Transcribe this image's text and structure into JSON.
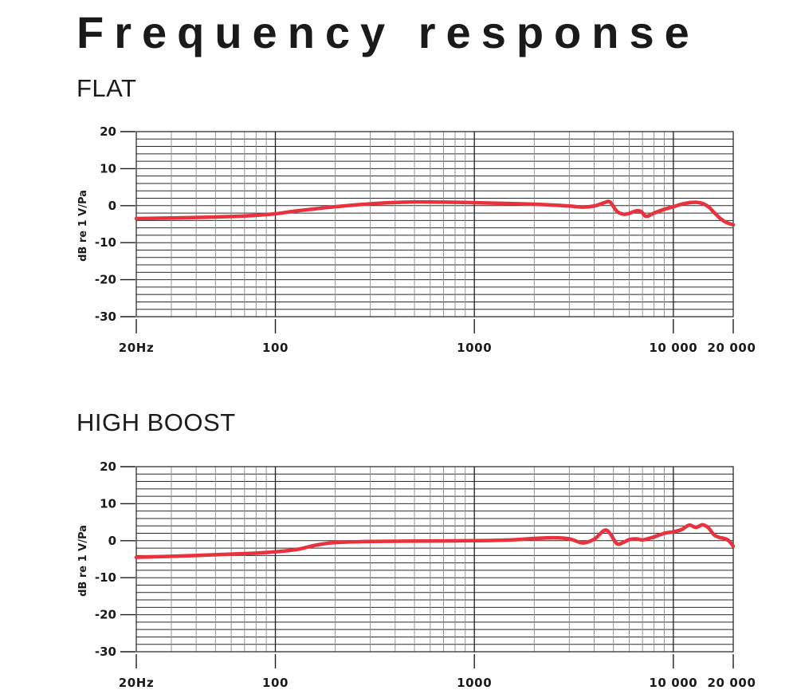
{
  "page": {
    "title": "Frequency response"
  },
  "chart_data": [
    {
      "type": "line",
      "title": "FLAT",
      "xlabel": "",
      "ylabel": "dB re 1 V/Pa",
      "xscale": "log",
      "xlim": [
        20,
        20000
      ],
      "ylim": [
        -30,
        20
      ],
      "x_tick_labels": [
        {
          "value": 20,
          "label": "20Hz"
        },
        {
          "value": 100,
          "label": "100"
        },
        {
          "value": 1000,
          "label": "1000"
        },
        {
          "value": 10000,
          "label": "10 000"
        },
        {
          "value": 20000,
          "label": "20 000"
        }
      ],
      "y_tick_labels": [
        {
          "value": 20,
          "label": "20"
        },
        {
          "value": 10,
          "label": "10"
        },
        {
          "value": 0,
          "label": "0"
        },
        {
          "value": -10,
          "label": "-10"
        },
        {
          "value": -20,
          "label": "-20"
        },
        {
          "value": -30,
          "label": "-30"
        }
      ],
      "grid": true,
      "line_color": "#e8323e",
      "series": [
        {
          "x": [
            20,
            40,
            70,
            100,
            120,
            150,
            200,
            300,
            500,
            800,
            1000,
            2000,
            3000,
            3500,
            4000,
            4500,
            4800,
            5200,
            5600,
            6000,
            6500,
            6900,
            7300,
            8000,
            9000,
            10000,
            11000,
            12000,
            13000,
            14000,
            15000,
            16000,
            17000,
            18000,
            19000,
            20000
          ],
          "y": [
            -3.5,
            -3.2,
            -2.8,
            -2.2,
            -1.6,
            -1.0,
            -0.3,
            0.5,
            1.0,
            0.9,
            0.8,
            0.4,
            -0.1,
            -0.4,
            -0.1,
            0.8,
            1.0,
            -1.5,
            -2.3,
            -2.1,
            -1.4,
            -1.6,
            -2.9,
            -2.0,
            -1.0,
            -0.3,
            0.4,
            0.8,
            0.9,
            0.6,
            -0.3,
            -1.8,
            -3.2,
            -4.2,
            -4.8,
            -5.2
          ]
        }
      ]
    },
    {
      "type": "line",
      "title": "HIGH BOOST",
      "xlabel": "",
      "ylabel": "dB re 1 V/Pa",
      "xscale": "log",
      "xlim": [
        20,
        20000
      ],
      "ylim": [
        -30,
        20
      ],
      "x_tick_labels": [
        {
          "value": 20,
          "label": "20Hz"
        },
        {
          "value": 100,
          "label": "100"
        },
        {
          "value": 1000,
          "label": "1000"
        },
        {
          "value": 10000,
          "label": "10 000"
        },
        {
          "value": 20000,
          "label": "20 000"
        }
      ],
      "y_tick_labels": [
        {
          "value": 20,
          "label": "20"
        },
        {
          "value": 10,
          "label": "10"
        },
        {
          "value": 0,
          "label": "0"
        },
        {
          "value": -10,
          "label": "-10"
        },
        {
          "value": -20,
          "label": "-20"
        },
        {
          "value": -30,
          "label": "-30"
        }
      ],
      "grid": true,
      "line_color": "#e8323e",
      "series": [
        {
          "x": [
            20,
            40,
            70,
            100,
            130,
            160,
            200,
            300,
            500,
            1000,
            1500,
            2000,
            2500,
            3000,
            3500,
            4000,
            4500,
            4800,
            5200,
            5600,
            6000,
            6500,
            7000,
            7500,
            8000,
            9000,
            10000,
            11000,
            12000,
            13000,
            14000,
            15000,
            16000,
            17000,
            18000,
            19000,
            20000
          ],
          "y": [
            -4.5,
            -4.0,
            -3.5,
            -3.0,
            -2.3,
            -1.2,
            -0.5,
            -0.2,
            -0.1,
            0.0,
            0.2,
            0.6,
            0.8,
            0.5,
            -0.6,
            0.4,
            2.8,
            2.0,
            -0.8,
            -0.5,
            0.3,
            0.5,
            0.2,
            0.6,
            1.0,
            2.0,
            2.4,
            3.0,
            4.2,
            3.6,
            4.3,
            3.5,
            1.6,
            0.9,
            0.6,
            0.0,
            -1.5
          ]
        }
      ]
    }
  ]
}
